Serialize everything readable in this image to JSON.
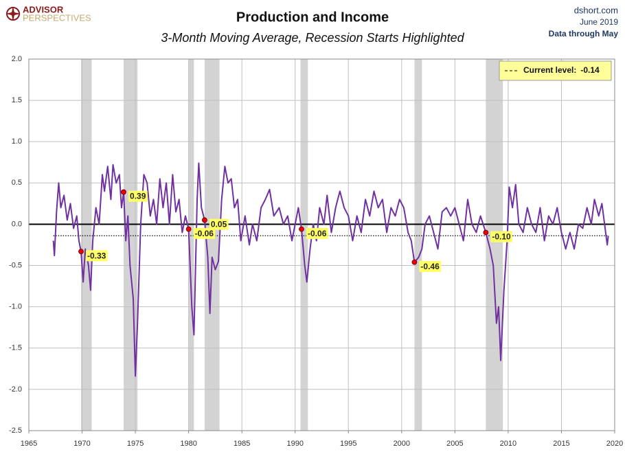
{
  "brand": {
    "line1": "ADVISOR",
    "line2": "PERSPECTIVES"
  },
  "source": {
    "site": "dshort.com",
    "date": "June 2019",
    "note": "Data through May"
  },
  "chart_data": {
    "type": "line",
    "title": "Production and Income",
    "subtitle": "3-Month Moving Average, Recession Starts Highlighted",
    "color": "#7030a0",
    "xlim": [
      1965,
      2020
    ],
    "xticks": [
      1965,
      1970,
      1975,
      1980,
      1985,
      1990,
      1995,
      2000,
      2005,
      2010,
      2015,
      2020
    ],
    "ylim": [
      -2.5,
      2.0
    ],
    "yticks": [
      {
        "value": 2.0,
        "label": "2.0"
      },
      {
        "value": 1.5,
        "label": "1.5"
      },
      {
        "value": 1.0,
        "label": "1.0"
      },
      {
        "value": 0.5,
        "label": "0.5"
      },
      {
        "value": 0,
        "label": "0.0"
      },
      {
        "value": -0.5,
        "label": "-0.5"
      },
      {
        "value": -1.0,
        "label": "-1.0"
      },
      {
        "value": -1.5,
        "label": "-1.5"
      },
      {
        "value": -2.0,
        "label": "-2.0"
      },
      {
        "value": -2.5,
        "label": "-2.5"
      }
    ],
    "grid": true,
    "recession_color": "#d3d3d3",
    "recessions": [
      [
        1969.9,
        1970.9
      ],
      [
        1973.9,
        1975.2
      ],
      [
        1980.0,
        1980.5
      ],
      [
        1981.5,
        1982.9
      ],
      [
        1990.5,
        1991.2
      ],
      [
        2001.2,
        2001.9
      ],
      [
        2007.9,
        2009.5
      ]
    ],
    "current_level": {
      "label": "Current level:",
      "value": -0.14,
      "value_label": "-0.14"
    },
    "annotations": [
      {
        "x": 1969.9,
        "value": -0.33,
        "label": "-0.33"
      },
      {
        "x": 1973.9,
        "value": 0.39,
        "label": "0.39"
      },
      {
        "x": 1980.0,
        "value": -0.06,
        "label": "-0.06"
      },
      {
        "x": 1981.5,
        "value": 0.05,
        "label": "0.05"
      },
      {
        "x": 1990.6,
        "value": -0.06,
        "label": "-0.06"
      },
      {
        "x": 2001.2,
        "value": -0.46,
        "label": "-0.46"
      },
      {
        "x": 2007.9,
        "value": -0.1,
        "label": "-0.10"
      }
    ],
    "x": [
      1967.3,
      1967.4,
      1967.6,
      1967.8,
      1968.0,
      1968.3,
      1968.6,
      1968.9,
      1969.2,
      1969.5,
      1969.7,
      1969.9,
      1970.1,
      1970.3,
      1970.6,
      1970.8,
      1971.0,
      1971.3,
      1971.6,
      1971.9,
      1972.1,
      1972.4,
      1972.7,
      1972.9,
      1973.2,
      1973.5,
      1973.7,
      1973.9,
      1974.1,
      1974.3,
      1974.5,
      1974.8,
      1975.0,
      1975.2,
      1975.5,
      1975.8,
      1976.1,
      1976.4,
      1976.7,
      1977.0,
      1977.3,
      1977.6,
      1977.9,
      1978.2,
      1978.5,
      1978.8,
      1979.1,
      1979.4,
      1979.7,
      1980.0,
      1980.3,
      1980.5,
      1980.8,
      1980.95,
      1981.2,
      1981.5,
      1981.8,
      1982.0,
      1982.2,
      1982.5,
      1982.8,
      1983.1,
      1983.4,
      1983.7,
      1984.0,
      1984.3,
      1984.6,
      1984.9,
      1985.3,
      1985.7,
      1986.0,
      1986.4,
      1986.8,
      1987.2,
      1987.6,
      1988.0,
      1988.5,
      1988.9,
      1989.3,
      1989.7,
      1990.0,
      1990.3,
      1990.6,
      1990.9,
      1991.1,
      1991.4,
      1991.7,
      1992.0,
      1992.3,
      1992.7,
      1993.0,
      1993.4,
      1993.8,
      1994.2,
      1994.6,
      1995.0,
      1995.4,
      1995.8,
      1996.2,
      1996.6,
      1997.0,
      1997.4,
      1997.8,
      1998.2,
      1998.6,
      1999.0,
      1999.4,
      1999.8,
      2000.2,
      2000.6,
      2000.9,
      2001.2,
      2001.6,
      2001.9,
      2002.2,
      2002.6,
      2003.0,
      2003.4,
      2003.8,
      2004.2,
      2004.6,
      2005.0,
      2005.4,
      2005.8,
      2006.2,
      2006.6,
      2007.0,
      2007.4,
      2007.9,
      2008.3,
      2008.6,
      2008.9,
      2009.1,
      2009.3,
      2009.6,
      2009.9,
      2010.1,
      2010.4,
      2010.7,
      2011.0,
      2011.4,
      2011.8,
      2012.2,
      2012.6,
      2013.0,
      2013.4,
      2013.8,
      2014.2,
      2014.6,
      2015.0,
      2015.4,
      2015.8,
      2016.2,
      2016.6,
      2017.0,
      2017.4,
      2017.8,
      2018.1,
      2018.5,
      2018.8,
      2019.1,
      2019.3,
      2019.4
    ],
    "values": [
      -0.2,
      -0.38,
      0.15,
      0.5,
      0.2,
      0.35,
      0.05,
      0.25,
      -0.05,
      0.1,
      -0.2,
      -0.33,
      -0.7,
      -0.3,
      -0.5,
      -0.8,
      -0.2,
      0.2,
      0.0,
      0.6,
      0.4,
      0.7,
      0.3,
      0.72,
      0.5,
      0.6,
      0.2,
      0.39,
      -0.2,
      0.1,
      -0.5,
      -0.9,
      -1.84,
      -1.2,
      0.0,
      0.6,
      0.5,
      0.1,
      0.3,
      0.0,
      0.55,
      0.2,
      0.5,
      0.0,
      0.6,
      0.15,
      0.3,
      -0.1,
      0.1,
      -0.06,
      -1.0,
      -1.34,
      0.3,
      0.74,
      0.2,
      0.05,
      -0.4,
      -1.08,
      -0.4,
      -0.55,
      -0.45,
      0.3,
      0.7,
      0.5,
      0.55,
      0.2,
      0.3,
      -0.2,
      0.1,
      -0.25,
      0.0,
      -0.2,
      0.2,
      0.3,
      0.42,
      0.1,
      0.2,
      0.0,
      0.1,
      -0.2,
      0.0,
      0.2,
      -0.06,
      -0.5,
      -0.7,
      -0.3,
      0.0,
      -0.2,
      0.2,
      0.0,
      0.35,
      -0.1,
      0.2,
      0.4,
      0.2,
      0.1,
      -0.2,
      0.1,
      -0.1,
      0.3,
      0.1,
      0.4,
      0.2,
      0.3,
      -0.1,
      0.2,
      0.1,
      0.3,
      0.2,
      -0.1,
      -0.2,
      -0.46,
      -0.4,
      -0.3,
      0.0,
      0.1,
      -0.1,
      -0.3,
      0.15,
      0.2,
      0.1,
      0.2,
      0.0,
      -0.2,
      0.3,
      0.0,
      -0.1,
      0.1,
      -0.1,
      -0.3,
      -0.5,
      -1.2,
      -1.0,
      -1.65,
      -0.8,
      -0.2,
      0.45,
      0.2,
      0.48,
      0.0,
      -0.1,
      0.2,
      0.0,
      -0.1,
      0.2,
      -0.2,
      0.1,
      0.0,
      0.2,
      -0.1,
      -0.3,
      -0.1,
      -0.3,
      0.0,
      -0.05,
      0.2,
      0.0,
      0.3,
      0.1,
      0.25,
      -0.05,
      -0.25,
      -0.14
    ]
  }
}
